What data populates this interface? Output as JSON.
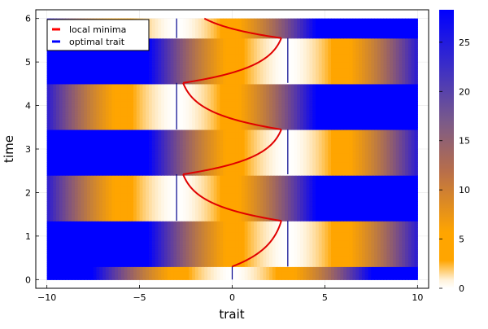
{
  "chart_data": {
    "type": "heatmap",
    "xlabel": "trait",
    "ylabel": "time",
    "xlim": [
      -10.6,
      10.6
    ],
    "ylim": [
      -0.2,
      6.2
    ],
    "xticks": [
      -10,
      -5,
      0,
      5,
      10
    ],
    "xtick_labels": [
      "−10",
      "−5",
      "0",
      "5",
      "10"
    ],
    "yticks": [
      0,
      1,
      2,
      3,
      4,
      5,
      6
    ],
    "ytick_labels": [
      "0",
      "1",
      "2",
      "3",
      "4",
      "5",
      "6"
    ],
    "grid": true,
    "heatmap": {
      "x_range": [
        -10,
        10
      ],
      "t_range": [
        0,
        6
      ],
      "colorbar_range": [
        0,
        28.3
      ],
      "colorbar_ticks": [
        0,
        5,
        10,
        15,
        20,
        25
      ],
      "colorbar_tick_labels": [
        "0",
        "5",
        "10",
        "15",
        "20",
        "25"
      ],
      "colormap": [
        "#ffffff",
        "#ffa500",
        "#0000ff"
      ]
    },
    "optimal_trait": {
      "color": "#00008b",
      "segments": [
        {
          "x": 0,
          "t_start": 0.0,
          "t_end": 0.3
        },
        {
          "x": 3,
          "t_start": 0.3,
          "t_end": 1.35
        },
        {
          "x": -3,
          "t_start": 1.35,
          "t_end": 2.42
        },
        {
          "x": 3,
          "t_start": 2.42,
          "t_end": 3.45
        },
        {
          "x": -3,
          "t_start": 3.45,
          "t_end": 4.52
        },
        {
          "x": 3,
          "t_start": 4.52,
          "t_end": 5.55
        },
        {
          "x": -3,
          "t_start": 5.55,
          "t_end": 6.0
        }
      ]
    },
    "local_minima": {
      "color": "#e00000",
      "segments": [
        {
          "t_start": 0.3,
          "t_end": 1.35,
          "x_start": 0.0,
          "x_end": 2.65
        },
        {
          "t_start": 1.35,
          "t_end": 2.42,
          "x_start": 2.65,
          "x_end": -2.65
        },
        {
          "t_start": 2.42,
          "t_end": 3.45,
          "x_start": -2.65,
          "x_end": 2.65
        },
        {
          "t_start": 3.45,
          "t_end": 4.52,
          "x_start": 2.65,
          "x_end": -2.65
        },
        {
          "t_start": 4.52,
          "t_end": 5.55,
          "x_start": -2.65,
          "x_end": 2.65
        },
        {
          "t_start": 5.55,
          "t_end": 6.0,
          "x_start": 2.65,
          "x_end": -1.5
        }
      ]
    },
    "legend": {
      "position": "top-left",
      "entries": [
        {
          "label": "local minima",
          "color": "#ff0000"
        },
        {
          "label": "optimal trait",
          "color": "#0000ff"
        }
      ]
    }
  }
}
